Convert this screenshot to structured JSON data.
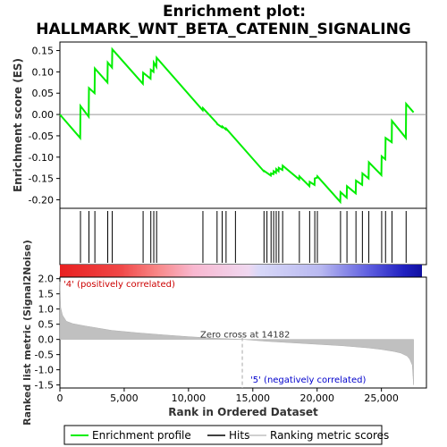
{
  "chart_data": {
    "type": "line",
    "title_line1": "Enrichment plot:",
    "title_line2": "HALLMARK_WNT_BETA_CATENIN_SIGNALING",
    "top_ylabel": "Enrichment score (ES)",
    "bottom_ylabel": "Ranked list metric (Signal2Noise)",
    "xlabel": "Rank in Ordered Dataset",
    "xlim": [
      0,
      28500
    ],
    "x_ticks": [
      0,
      5000,
      10000,
      15000,
      20000,
      25000
    ],
    "x_tick_labels": [
      "0",
      "5,000",
      "10,000",
      "15,000",
      "20,000",
      "25,000"
    ],
    "es_ylim": [
      -0.22,
      0.17
    ],
    "es_ticks": [
      0.15,
      0.1,
      0.05,
      0.0,
      -0.05,
      -0.1,
      -0.15,
      -0.2
    ],
    "es_tick_labels": [
      "0.15",
      "0.10",
      "0.05",
      "0.00",
      "-0.05",
      "-0.10",
      "-0.15",
      "-0.20"
    ],
    "metric_ylim": [
      -1.6,
      2.05
    ],
    "metric_ticks": [
      2.0,
      1.5,
      1.0,
      0.5,
      0.0,
      -0.5,
      -1.0,
      -1.5
    ],
    "metric_tick_labels": [
      "2.0",
      "1.5",
      "1.0",
      "0.5",
      "0.0",
      "-0.5",
      "-1.0",
      "-1.5"
    ],
    "series": [
      {
        "name": "Enrichment profile",
        "color": "#00ee00",
        "x": [
          0,
          1580,
          1600,
          2240,
          2260,
          2700,
          2720,
          3700,
          3720,
          4050,
          4070,
          6450,
          6470,
          7050,
          7070,
          7280,
          7300,
          7500,
          7520,
          11100,
          11120,
          12200,
          12220,
          12600,
          12620,
          12900,
          12920,
          15850,
          15870,
          16400,
          16420,
          16600,
          16620,
          16800,
          16820,
          17000,
          17020,
          17300,
          17320,
          18600,
          18620,
          19400,
          19420,
          19800,
          19820,
          20000,
          20020,
          21800,
          21820,
          22300,
          22320,
          23000,
          23020,
          23500,
          23520,
          24000,
          24020,
          25000,
          25020,
          25300,
          25320,
          25800,
          25820,
          26900,
          26920,
          27500
        ],
        "y": [
          0.0,
          -0.055,
          0.02,
          -0.005,
          0.062,
          0.05,
          0.108,
          0.075,
          0.122,
          0.11,
          0.153,
          0.072,
          0.098,
          0.084,
          0.105,
          0.1,
          0.122,
          0.112,
          0.133,
          0.01,
          0.015,
          -0.02,
          -0.022,
          -0.03,
          -0.028,
          -0.035,
          -0.033,
          -0.133,
          -0.132,
          -0.143,
          -0.138,
          -0.14,
          -0.133,
          -0.137,
          -0.128,
          -0.133,
          -0.125,
          -0.13,
          -0.12,
          -0.152,
          -0.145,
          -0.168,
          -0.158,
          -0.165,
          -0.15,
          -0.148,
          -0.145,
          -0.205,
          -0.182,
          -0.195,
          -0.168,
          -0.185,
          -0.155,
          -0.165,
          -0.138,
          -0.15,
          -0.112,
          -0.142,
          -0.098,
          -0.105,
          -0.055,
          -0.065,
          -0.015,
          -0.055,
          0.025,
          0.005
        ]
      },
      {
        "name": "Hits",
        "color": "#000000",
        "x": [
          1600,
          2260,
          2720,
          3720,
          4070,
          6470,
          7070,
          7300,
          7520,
          11120,
          12220,
          12620,
          12920,
          13650,
          15870,
          16100,
          16420,
          16620,
          16820,
          17020,
          17320,
          18620,
          19420,
          19820,
          20020,
          21820,
          22320,
          23020,
          23520,
          24020,
          25020,
          25320,
          25820,
          26920
        ]
      },
      {
        "name": "Ranking metric scores",
        "color": "#c0c0c0",
        "x": [
          0,
          60,
          200,
          500,
          1000,
          2000,
          3000,
          4000,
          6000,
          8000,
          10000,
          12000,
          14182,
          16000,
          18000,
          20000,
          22000,
          24000,
          25000,
          26000,
          26500,
          27000,
          27200,
          27400,
          27500
        ],
        "y": [
          1.9,
          1.05,
          0.8,
          0.6,
          0.52,
          0.44,
          0.37,
          0.3,
          0.22,
          0.15,
          0.09,
          0.04,
          0.0,
          -0.06,
          -0.11,
          -0.16,
          -0.21,
          -0.28,
          -0.33,
          -0.4,
          -0.45,
          -0.55,
          -0.65,
          -0.85,
          -1.5
        ]
      }
    ],
    "zero_cross_label": "Zero cross at 14182",
    "zero_cross_x": 14182,
    "pos_label": "'4' (positively correlated)",
    "neg_label": "'5' (negatively correlated)",
    "legend_placement": "bottom-center"
  },
  "colors": {
    "es_line": "#00ee00",
    "hit": "#000000",
    "metric_fill": "#c0c0c0",
    "pos_text": "#cc0000",
    "neg_text": "#0000cc",
    "zero_line": "#aaaaaa"
  }
}
